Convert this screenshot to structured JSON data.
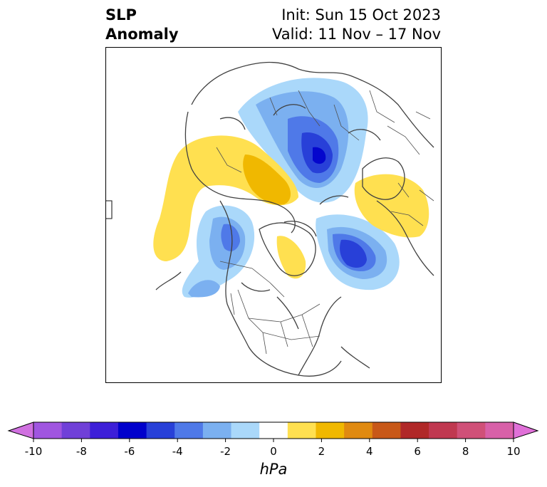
{
  "header": {
    "title_line1": "SLP",
    "title_line2": "Anomaly",
    "init_label": "Init: Sun 15 Oct 2023",
    "valid_label": "Valid: 11 Nov – 17 Nov"
  },
  "colorbar": {
    "units": "hPa",
    "tick_labels": [
      "-10",
      "-8",
      "-6",
      "-4",
      "-2",
      "0",
      "2",
      "4",
      "6",
      "8",
      "10"
    ],
    "colors": [
      "#d070e0",
      "#a055e0",
      "#7040d8",
      "#3d1fd8",
      "#0000cc",
      "#2840d8",
      "#4f79e8",
      "#7bb0f0",
      "#aad8fa",
      "#ffffff",
      "#ffe050",
      "#f0b800",
      "#e08a10",
      "#c85818",
      "#b02828",
      "#c03850",
      "#d05078",
      "#d860a8",
      "#e070d8"
    ]
  },
  "map": {
    "projection_hint": "North polar stereographic",
    "features": [
      "coastlines-icon",
      "country-borders-icon",
      "us-state-borders-icon"
    ]
  }
}
